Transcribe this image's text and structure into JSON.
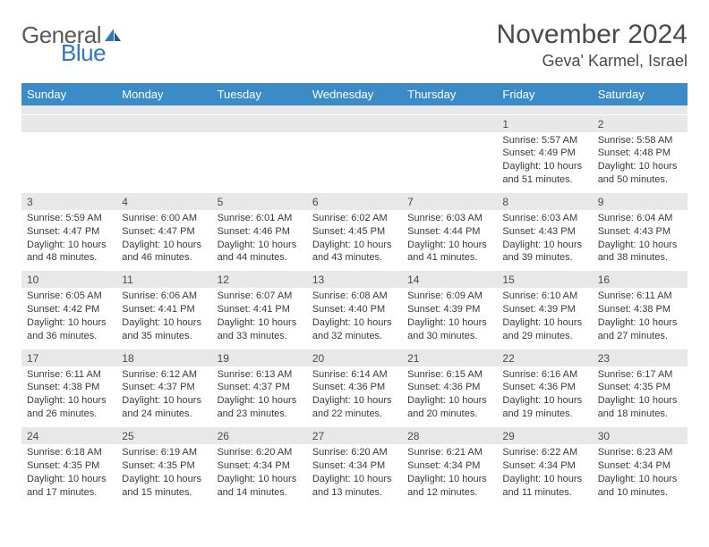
{
  "logo": {
    "part1": "General",
    "part2": "Blue"
  },
  "title": "November 2024",
  "subtitle": "Geva' Karmel, Israel",
  "colors": {
    "header_bg": "#3b8bc9",
    "header_text": "#ffffff",
    "daynum_bg": "#e8e8e8",
    "text": "#4a4a4a",
    "logo_gray": "#5a5a5a",
    "logo_blue": "#2b7ac0"
  },
  "day_headers": [
    "Sunday",
    "Monday",
    "Tuesday",
    "Wednesday",
    "Thursday",
    "Friday",
    "Saturday"
  ],
  "weeks": [
    [
      {
        "n": "",
        "lines": []
      },
      {
        "n": "",
        "lines": []
      },
      {
        "n": "",
        "lines": []
      },
      {
        "n": "",
        "lines": []
      },
      {
        "n": "",
        "lines": []
      },
      {
        "n": "1",
        "lines": [
          "Sunrise: 5:57 AM",
          "Sunset: 4:49 PM",
          "Daylight: 10 hours and 51 minutes."
        ]
      },
      {
        "n": "2",
        "lines": [
          "Sunrise: 5:58 AM",
          "Sunset: 4:48 PM",
          "Daylight: 10 hours and 50 minutes."
        ]
      }
    ],
    [
      {
        "n": "3",
        "lines": [
          "Sunrise: 5:59 AM",
          "Sunset: 4:47 PM",
          "Daylight: 10 hours and 48 minutes."
        ]
      },
      {
        "n": "4",
        "lines": [
          "Sunrise: 6:00 AM",
          "Sunset: 4:47 PM",
          "Daylight: 10 hours and 46 minutes."
        ]
      },
      {
        "n": "5",
        "lines": [
          "Sunrise: 6:01 AM",
          "Sunset: 4:46 PM",
          "Daylight: 10 hours and 44 minutes."
        ]
      },
      {
        "n": "6",
        "lines": [
          "Sunrise: 6:02 AM",
          "Sunset: 4:45 PM",
          "Daylight: 10 hours and 43 minutes."
        ]
      },
      {
        "n": "7",
        "lines": [
          "Sunrise: 6:03 AM",
          "Sunset: 4:44 PM",
          "Daylight: 10 hours and 41 minutes."
        ]
      },
      {
        "n": "8",
        "lines": [
          "Sunrise: 6:03 AM",
          "Sunset: 4:43 PM",
          "Daylight: 10 hours and 39 minutes."
        ]
      },
      {
        "n": "9",
        "lines": [
          "Sunrise: 6:04 AM",
          "Sunset: 4:43 PM",
          "Daylight: 10 hours and 38 minutes."
        ]
      }
    ],
    [
      {
        "n": "10",
        "lines": [
          "Sunrise: 6:05 AM",
          "Sunset: 4:42 PM",
          "Daylight: 10 hours and 36 minutes."
        ]
      },
      {
        "n": "11",
        "lines": [
          "Sunrise: 6:06 AM",
          "Sunset: 4:41 PM",
          "Daylight: 10 hours and 35 minutes."
        ]
      },
      {
        "n": "12",
        "lines": [
          "Sunrise: 6:07 AM",
          "Sunset: 4:41 PM",
          "Daylight: 10 hours and 33 minutes."
        ]
      },
      {
        "n": "13",
        "lines": [
          "Sunrise: 6:08 AM",
          "Sunset: 4:40 PM",
          "Daylight: 10 hours and 32 minutes."
        ]
      },
      {
        "n": "14",
        "lines": [
          "Sunrise: 6:09 AM",
          "Sunset: 4:39 PM",
          "Daylight: 10 hours and 30 minutes."
        ]
      },
      {
        "n": "15",
        "lines": [
          "Sunrise: 6:10 AM",
          "Sunset: 4:39 PM",
          "Daylight: 10 hours and 29 minutes."
        ]
      },
      {
        "n": "16",
        "lines": [
          "Sunrise: 6:11 AM",
          "Sunset: 4:38 PM",
          "Daylight: 10 hours and 27 minutes."
        ]
      }
    ],
    [
      {
        "n": "17",
        "lines": [
          "Sunrise: 6:11 AM",
          "Sunset: 4:38 PM",
          "Daylight: 10 hours and 26 minutes."
        ]
      },
      {
        "n": "18",
        "lines": [
          "Sunrise: 6:12 AM",
          "Sunset: 4:37 PM",
          "Daylight: 10 hours and 24 minutes."
        ]
      },
      {
        "n": "19",
        "lines": [
          "Sunrise: 6:13 AM",
          "Sunset: 4:37 PM",
          "Daylight: 10 hours and 23 minutes."
        ]
      },
      {
        "n": "20",
        "lines": [
          "Sunrise: 6:14 AM",
          "Sunset: 4:36 PM",
          "Daylight: 10 hours and 22 minutes."
        ]
      },
      {
        "n": "21",
        "lines": [
          "Sunrise: 6:15 AM",
          "Sunset: 4:36 PM",
          "Daylight: 10 hours and 20 minutes."
        ]
      },
      {
        "n": "22",
        "lines": [
          "Sunrise: 6:16 AM",
          "Sunset: 4:36 PM",
          "Daylight: 10 hours and 19 minutes."
        ]
      },
      {
        "n": "23",
        "lines": [
          "Sunrise: 6:17 AM",
          "Sunset: 4:35 PM",
          "Daylight: 10 hours and 18 minutes."
        ]
      }
    ],
    [
      {
        "n": "24",
        "lines": [
          "Sunrise: 6:18 AM",
          "Sunset: 4:35 PM",
          "Daylight: 10 hours and 17 minutes."
        ]
      },
      {
        "n": "25",
        "lines": [
          "Sunrise: 6:19 AM",
          "Sunset: 4:35 PM",
          "Daylight: 10 hours and 15 minutes."
        ]
      },
      {
        "n": "26",
        "lines": [
          "Sunrise: 6:20 AM",
          "Sunset: 4:34 PM",
          "Daylight: 10 hours and 14 minutes."
        ]
      },
      {
        "n": "27",
        "lines": [
          "Sunrise: 6:20 AM",
          "Sunset: 4:34 PM",
          "Daylight: 10 hours and 13 minutes."
        ]
      },
      {
        "n": "28",
        "lines": [
          "Sunrise: 6:21 AM",
          "Sunset: 4:34 PM",
          "Daylight: 10 hours and 12 minutes."
        ]
      },
      {
        "n": "29",
        "lines": [
          "Sunrise: 6:22 AM",
          "Sunset: 4:34 PM",
          "Daylight: 10 hours and 11 minutes."
        ]
      },
      {
        "n": "30",
        "lines": [
          "Sunrise: 6:23 AM",
          "Sunset: 4:34 PM",
          "Daylight: 10 hours and 10 minutes."
        ]
      }
    ]
  ]
}
